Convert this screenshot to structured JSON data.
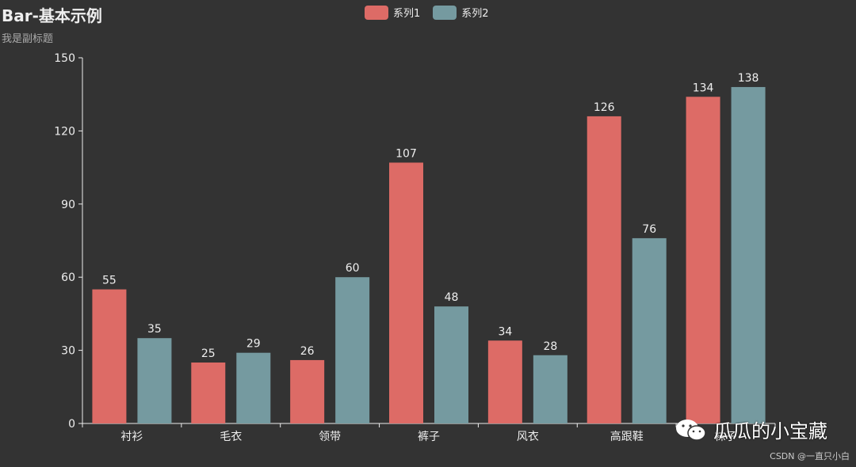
{
  "chart_data": {
    "type": "bar",
    "title": "Bar-基本示例",
    "subtitle": "我是副标题",
    "categories": [
      "衬衫",
      "毛衣",
      "领带",
      "裤子",
      "风衣",
      "高跟鞋",
      "袜子"
    ],
    "series": [
      {
        "name": "系列1",
        "color": "#dd6b66",
        "values": [
          55,
          25,
          26,
          107,
          34,
          126,
          134
        ]
      },
      {
        "name": "系列2",
        "color": "#759aa0",
        "values": [
          35,
          29,
          60,
          48,
          28,
          76,
          138
        ]
      }
    ],
    "ylim": [
      0,
      150
    ],
    "yticks": [
      0,
      30,
      60,
      90,
      120,
      150
    ],
    "grid": false,
    "legend": "top-center",
    "xlabel": "",
    "ylabel": ""
  },
  "watermark": {
    "text": "瓜瓜的小宝藏",
    "icon": "wechat-icon"
  },
  "credit": "CSDN @一直只小白"
}
